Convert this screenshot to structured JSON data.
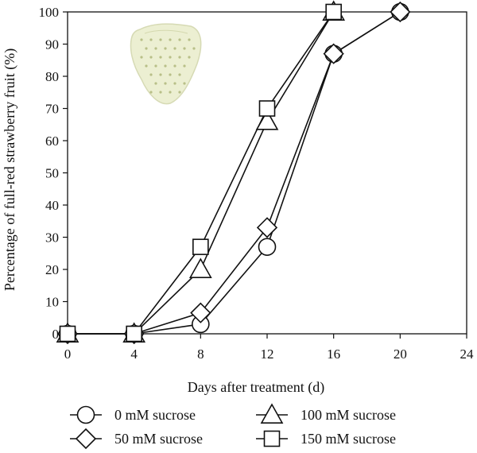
{
  "chart_data": {
    "type": "line",
    "xlabel": "Days after treatment (d)",
    "ylabel": "Percentage of full-red strawberry fruit (%)",
    "xlim": [
      0,
      24
    ],
    "ylim": [
      0,
      100
    ],
    "xticks": [
      0,
      4,
      8,
      12,
      16,
      20,
      24
    ],
    "yticks": [
      0,
      10,
      20,
      30,
      40,
      50,
      60,
      70,
      80,
      90,
      100
    ],
    "grid": false,
    "legend_position": "bottom",
    "inset_image": "unripe white strawberry",
    "series": [
      {
        "name": "0 mM sucrose",
        "marker": "circle",
        "x": [
          0,
          4,
          8,
          12,
          16,
          20
        ],
        "y": [
          0,
          0,
          3,
          27,
          87,
          100
        ]
      },
      {
        "name": "50 mM sucrose",
        "marker": "diamond",
        "x": [
          0,
          4,
          8,
          12,
          16,
          20
        ],
        "y": [
          0,
          0,
          6.5,
          33,
          87,
          100
        ]
      },
      {
        "name": "100 mM sucrose",
        "marker": "triangle",
        "x": [
          0,
          4,
          8,
          12,
          16
        ],
        "y": [
          0,
          0,
          20,
          66,
          100
        ]
      },
      {
        "name": "150 mM sucrose",
        "marker": "square",
        "x": [
          0,
          4,
          8,
          12,
          16
        ],
        "y": [
          0,
          0,
          27,
          70,
          100
        ]
      }
    ]
  }
}
